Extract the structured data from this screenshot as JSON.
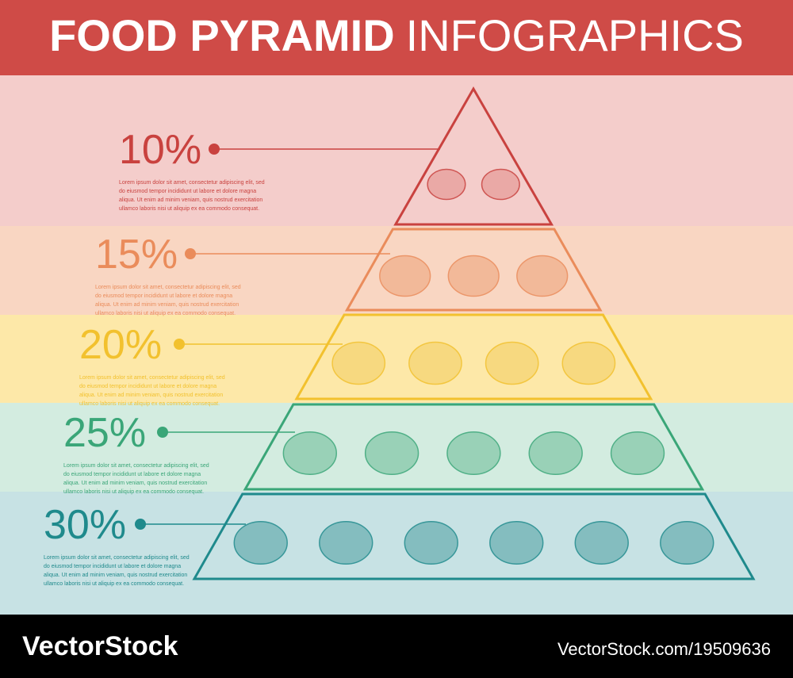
{
  "header": {
    "title_bold": "FOOD PYRAMID",
    "title_light": "INFOGRAPHICS"
  },
  "levels": [
    {
      "percent": "10%",
      "text": [
        "Lorem ipsum dolor sit amet, consectetur adipiscing elit, sed",
        "do eiusmod tempor incididunt ut labore et dolore magna",
        "aliqua. Ut enim ad minim veniam, quis nostrud exercitation",
        "ullamco laboris nisi ut aliquip ex ea commodo consequat."
      ]
    },
    {
      "percent": "15%",
      "text": [
        "Lorem ipsum dolor sit amet, consectetur adipiscing elit, sed",
        "do eiusmod tempor incididunt ut labore et dolore magna",
        "aliqua. Ut enim ad minim veniam, quis nostrud exercitation",
        "ullamco laboris nisi ut aliquip ex ea commodo consequat."
      ]
    },
    {
      "percent": "20%",
      "text": [
        "Lorem ipsum dolor sit amet, consectetur adipiscing elit, sed",
        "do eiusmod tempor incididunt ut labore et dolore magna",
        "aliqua. Ut enim ad minim veniam, quis nostrud exercitation",
        "ullamco laboris nisi ut aliquip ex ea commodo consequat."
      ]
    },
    {
      "percent": "25%",
      "text": [
        "Lorem ipsum dolor sit amet, consectetur adipiscing elit, sed",
        "do eiusmod tempor incididunt ut labore et dolore magna",
        "aliqua. Ut enim ad minim veniam, quis nostrud exercitation",
        "ullamco laboris nisi ut aliquip ex ea commodo consequat."
      ]
    },
    {
      "percent": "30%",
      "text": [
        "Lorem ipsum dolor sit amet, consectetur adipiscing elit, sed",
        "do eiusmod tempor incididunt ut labore et dolore magna",
        "aliqua. Ut enim ad minim veniam, quis nostrud exercitation",
        "ullamco laboris nisi ut aliquip ex ea commodo consequat."
      ]
    }
  ],
  "footer": {
    "brand": "VectorStock",
    "id": "VectorStock.com/19509636"
  }
}
